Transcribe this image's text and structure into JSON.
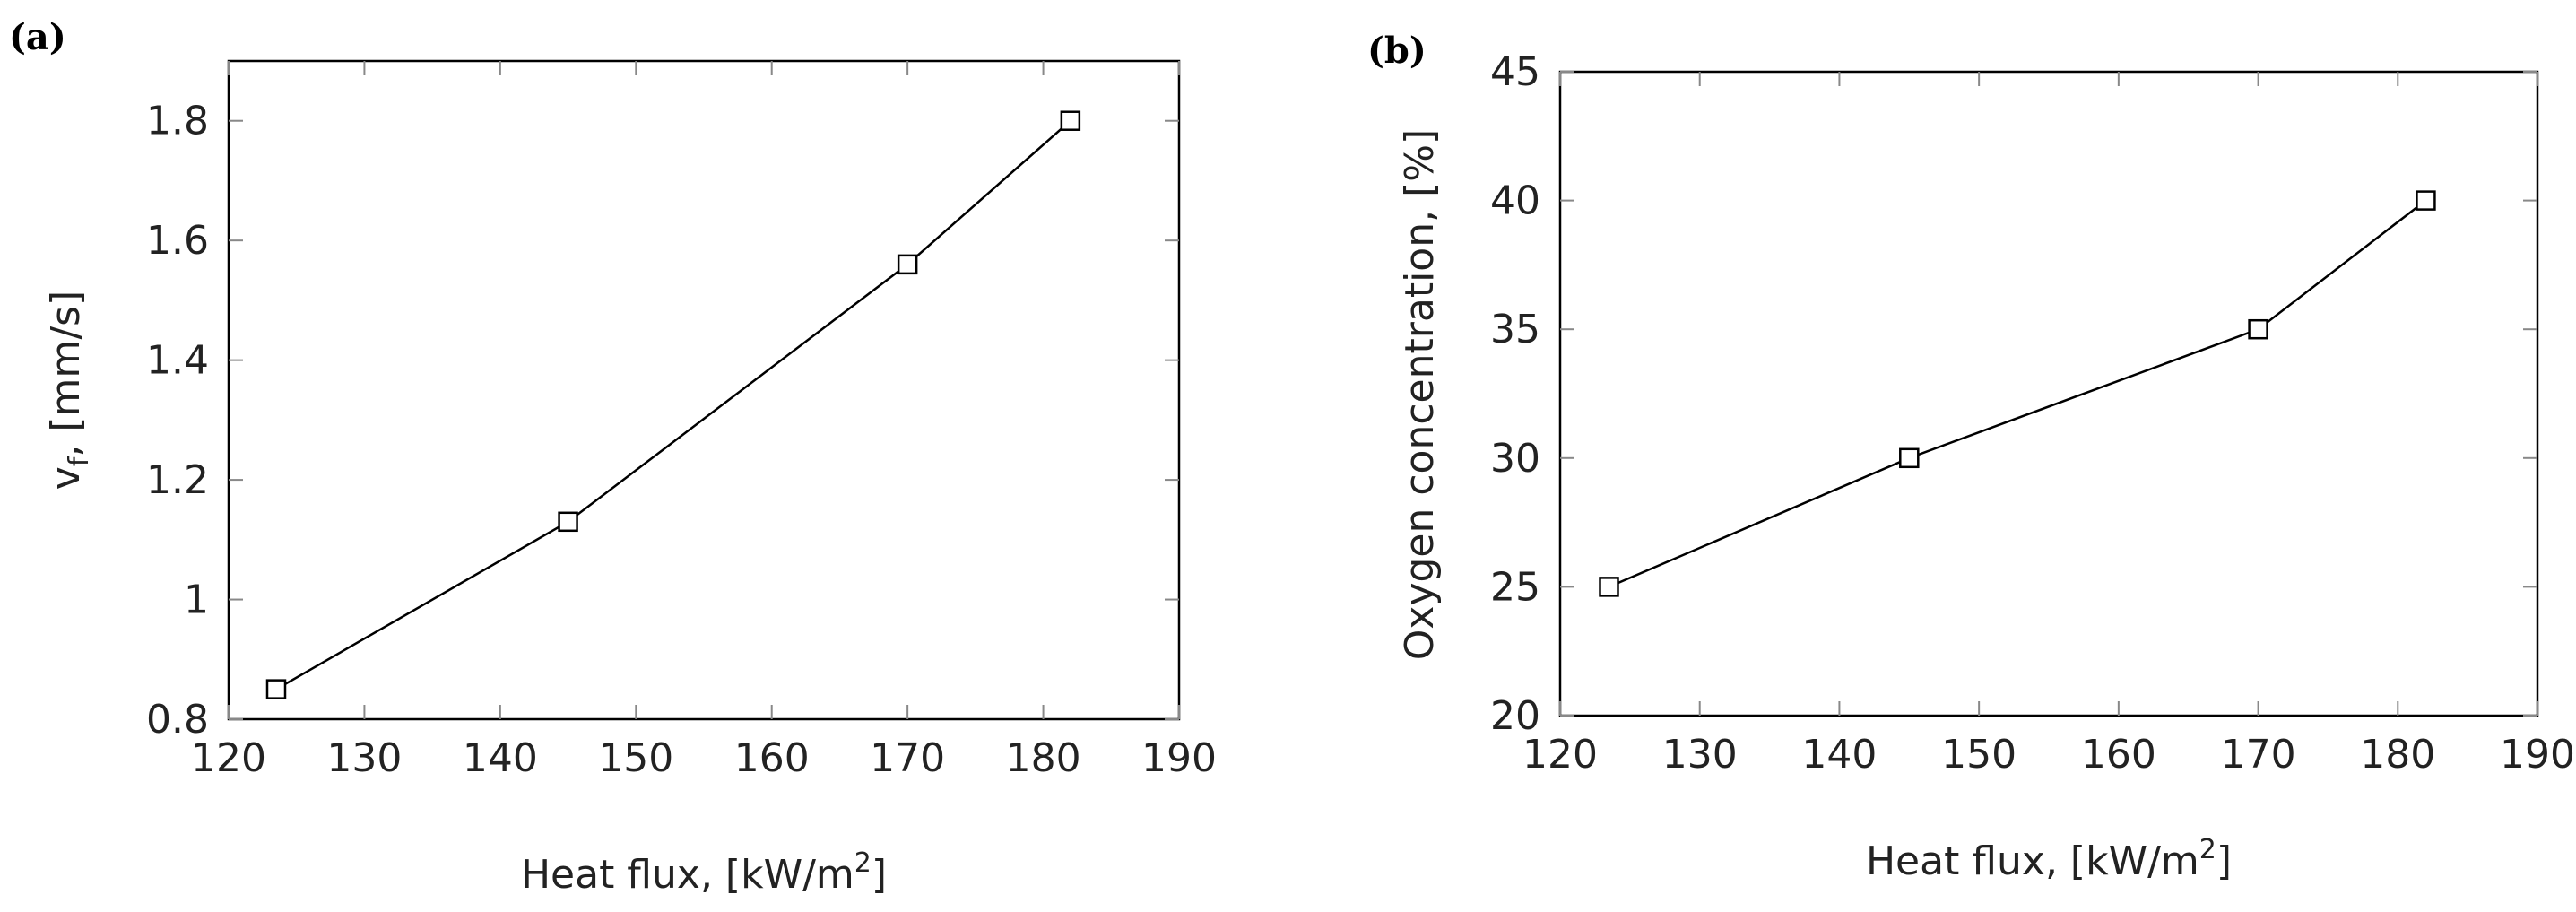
{
  "panels": [
    {
      "label": "(a)"
    },
    {
      "label": "(b)"
    }
  ],
  "colors": {
    "line": "#000000",
    "frame": "#000000",
    "grid_tick": "#888888",
    "text": "#222222"
  },
  "chart_data": [
    {
      "type": "line",
      "panel": "(a)",
      "title": "",
      "x": [
        123.5,
        145,
        170,
        182
      ],
      "y": [
        0.85,
        1.13,
        1.56,
        1.8
      ],
      "xlabel": "Heat flux, [kW/m2]",
      "xlabel_main": "Heat flux, [kW/m",
      "xlabel_sup": "2",
      "xlabel_close": "]",
      "ylabel": "vf, [mm/s]",
      "ylabel_main": "v",
      "ylabel_sub": "f",
      "ylabel_rest": ", [mm/s]",
      "xlim": [
        120,
        190
      ],
      "ylim": [
        0.8,
        1.9
      ],
      "xticks": [
        120,
        130,
        140,
        150,
        160,
        170,
        180,
        190
      ],
      "xtick_labels": [
        "120",
        "130",
        "140",
        "150",
        "160",
        "170",
        "180",
        "190"
      ],
      "yticks": [
        0.8,
        1.0,
        1.2,
        1.4,
        1.6,
        1.8
      ],
      "ytick_labels": [
        "0.8",
        "1",
        "1.2",
        "1.4",
        "1.6",
        "1.8"
      ],
      "marker": "square-open",
      "grid": false
    },
    {
      "type": "line",
      "panel": "(b)",
      "title": "",
      "x": [
        123.5,
        145,
        170,
        182
      ],
      "y": [
        25,
        30,
        35,
        40
      ],
      "xlabel": "Heat flux, [kW/m2]",
      "xlabel_main": "Heat flux, [kW/m",
      "xlabel_sup": "2",
      "xlabel_close": "]",
      "ylabel": "Oxygen concentration, [%]",
      "ylabel_main": "Oxygen concentration, [%]",
      "ylabel_sub": "",
      "ylabel_rest": "",
      "xlim": [
        120,
        190
      ],
      "ylim": [
        20,
        45
      ],
      "xticks": [
        120,
        130,
        140,
        150,
        160,
        170,
        180,
        190
      ],
      "xtick_labels": [
        "120",
        "130",
        "140",
        "150",
        "160",
        "170",
        "180",
        "190"
      ],
      "yticks": [
        20,
        25,
        30,
        35,
        40,
        45
      ],
      "ytick_labels": [
        "20",
        "25",
        "30",
        "35",
        "40",
        "45"
      ],
      "marker": "square-open",
      "grid": false
    }
  ]
}
